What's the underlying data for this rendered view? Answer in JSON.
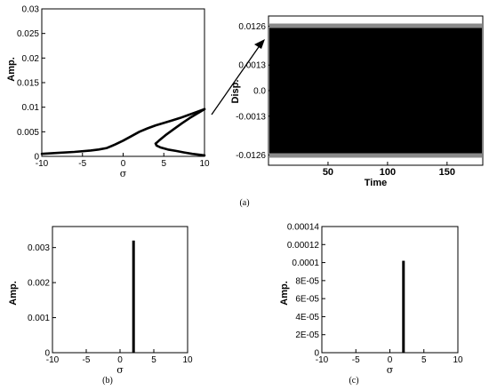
{
  "chart_data": [
    {
      "id": "a-left",
      "type": "line",
      "xlabel": "σ",
      "ylabel": "Amp.",
      "xlim": [
        -10,
        10
      ],
      "ylim": [
        0,
        0.03
      ],
      "x_ticks": [
        "-10",
        "-5",
        "0",
        "5",
        "10"
      ],
      "y_ticks": [
        "0",
        "0.005",
        "0.01",
        "0.015",
        "0.02",
        "0.025",
        "0.03"
      ],
      "series": [
        {
          "x": [
            -10,
            -8,
            -6,
            -4,
            -3,
            -2,
            -1,
            0,
            1,
            2,
            3,
            4,
            5,
            6,
            7,
            8,
            9,
            10
          ],
          "y": [
            0.0005,
            0.0007,
            0.0009,
            0.0012,
            0.0014,
            0.0017,
            0.0024,
            0.0032,
            0.0041,
            0.005,
            0.0057,
            0.0063,
            0.0068,
            0.0073,
            0.0078,
            0.0084,
            0.009,
            0.0096
          ]
        },
        {
          "x": [
            4.0,
            4.1,
            4.6,
            5.5,
            6.5,
            7.5,
            8.5,
            9.5,
            10
          ],
          "y": [
            0.0026,
            0.0022,
            0.0018,
            0.0014,
            0.0011,
            0.0008,
            0.0005,
            0.0003,
            0.0002
          ]
        },
        {
          "x": [
            4.0,
            4.4,
            5.2,
            6.2,
            7.2,
            8.2,
            9.2,
            10
          ],
          "y": [
            0.0026,
            0.0032,
            0.0043,
            0.0055,
            0.0067,
            0.0078,
            0.0088,
            0.0096
          ]
        }
      ]
    },
    {
      "id": "a-right",
      "type": "area",
      "xlabel": "Time",
      "ylabel": "Disp.",
      "xlim": [
        0,
        180
      ],
      "ylim": [
        -0.0146,
        0.0146
      ],
      "x_ticks": [
        "50",
        "100",
        "150"
      ],
      "x_tick_values": [
        50,
        100,
        150
      ],
      "y_ticks": [
        "0.0126",
        "0.0013",
        "0.0",
        "-0.0013",
        "-0.0126"
      ],
      "envelope": [
        -0.0126,
        0.0126
      ]
    },
    {
      "id": "b",
      "type": "bar",
      "xlabel": "σ",
      "ylabel": "Amp.",
      "xlim": [
        -10,
        10
      ],
      "ylim": [
        0,
        0.0036
      ],
      "x_ticks": [
        "-10",
        "-5",
        "0",
        "5",
        "10"
      ],
      "y_ticks": [
        "0",
        "0.001",
        "0.002",
        "0.003"
      ],
      "x": [
        2
      ],
      "values": [
        0.0032
      ]
    },
    {
      "id": "c",
      "type": "bar",
      "xlabel": "σ",
      "ylabel": "Amp.",
      "xlim": [
        -10,
        10
      ],
      "ylim": [
        0,
        0.00014
      ],
      "x_ticks": [
        "-10",
        "-5",
        "0",
        "5",
        "10"
      ],
      "y_ticks": [
        "0",
        "2E-05",
        "4E-05",
        "6E-05",
        "8E-05",
        "0.0001",
        "0.00012",
        "0.00014"
      ],
      "x": [
        2
      ],
      "values": [
        0.000102
      ]
    }
  ],
  "captions": {
    "a": "(a)",
    "b": "(b)",
    "c": "(c)"
  }
}
